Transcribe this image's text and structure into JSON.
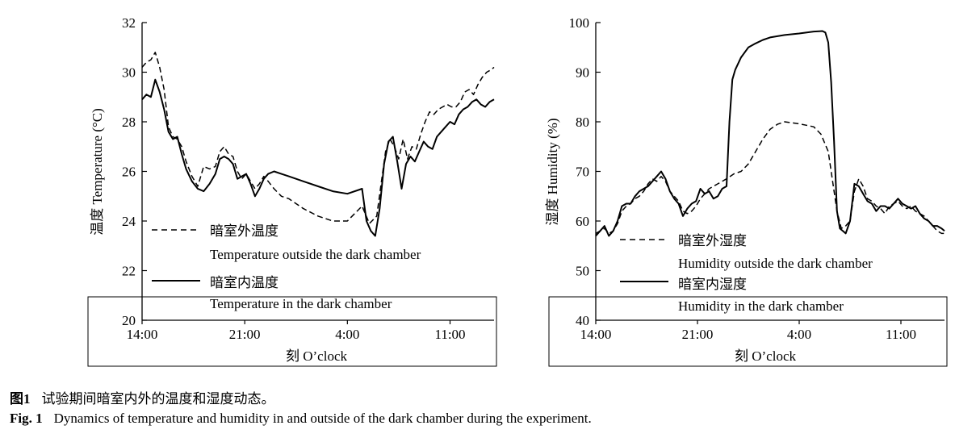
{
  "chart_data": [
    {
      "type": "line",
      "ylabel": "温度 Temperature (°C)",
      "xlabel": "刻 O’clock",
      "ylim": [
        20,
        32
      ],
      "yticks": [
        20,
        22,
        24,
        26,
        28,
        30,
        32
      ],
      "xlim": [
        0,
        24
      ],
      "xticks": [
        {
          "x": 0,
          "label": "14:00"
        },
        {
          "x": 7,
          "label": "21:00"
        },
        {
          "x": 14,
          "label": "4:00"
        },
        {
          "x": 21,
          "label": "11:00"
        }
      ],
      "series": [
        {
          "name": "暗室外温度",
          "name_en": "Temperature outside the dark chamber",
          "style": "dashed",
          "x": [
            0,
            0.3,
            0.6,
            0.9,
            1.2,
            1.5,
            1.8,
            2.1,
            2.4,
            2.7,
            3.0,
            3.4,
            3.8,
            4.2,
            4.6,
            5.0,
            5.3,
            5.6,
            5.9,
            6.2,
            6.5,
            6.8,
            7.1,
            7.4,
            7.7,
            8.0,
            8.3,
            8.6,
            9.0,
            9.5,
            10.0,
            11.0,
            12.0,
            13.0,
            14.0,
            15.0,
            15.5,
            16.0,
            16.3,
            16.6,
            16.9,
            17.2,
            17.5,
            17.8,
            18.1,
            18.4,
            18.7,
            19.0,
            19.3,
            19.6,
            19.9,
            20.2,
            20.5,
            20.8,
            21.1,
            21.4,
            21.7,
            22.0,
            22.3,
            22.6,
            22.9,
            23.2,
            23.5,
            23.8,
            24.0
          ],
          "values": [
            30.2,
            30.4,
            30.5,
            30.8,
            30.2,
            29.3,
            27.8,
            27.4,
            27.3,
            27.0,
            26.4,
            25.8,
            25.4,
            26.2,
            26.1,
            26.2,
            26.8,
            27.0,
            26.7,
            26.6,
            26.0,
            25.7,
            25.9,
            25.6,
            25.3,
            25.5,
            25.8,
            25.6,
            25.3,
            25.0,
            24.9,
            24.5,
            24.2,
            24.0,
            24.0,
            24.6,
            23.9,
            24.2,
            25.5,
            26.8,
            27.3,
            27.0,
            26.5,
            27.3,
            26.5,
            27.0,
            26.9,
            27.5,
            28.0,
            28.4,
            28.3,
            28.5,
            28.6,
            28.7,
            28.6,
            28.6,
            28.8,
            29.2,
            29.3,
            29.1,
            29.5,
            29.8,
            30.0,
            30.1,
            30.2
          ]
        },
        {
          "name": "暗室内温度",
          "name_en": "Temperature in the dark chamber",
          "style": "solid",
          "x": [
            0,
            0.3,
            0.6,
            0.9,
            1.2,
            1.5,
            1.8,
            2.1,
            2.4,
            2.7,
            3.0,
            3.4,
            3.8,
            4.2,
            4.6,
            5.0,
            5.3,
            5.6,
            5.9,
            6.2,
            6.5,
            6.8,
            7.1,
            7.4,
            7.7,
            8.0,
            8.3,
            8.6,
            9.0,
            9.5,
            10.0,
            11.0,
            12.0,
            13.0,
            14.0,
            15.0,
            15.3,
            15.6,
            15.9,
            16.2,
            16.5,
            16.8,
            17.1,
            17.4,
            17.7,
            18.0,
            18.3,
            18.6,
            18.9,
            19.2,
            19.5,
            19.8,
            20.1,
            20.4,
            20.7,
            21.0,
            21.3,
            21.6,
            21.9,
            22.2,
            22.5,
            22.8,
            23.1,
            23.4,
            23.7,
            24.0
          ],
          "values": [
            28.9,
            29.1,
            29.0,
            29.7,
            29.2,
            28.5,
            27.6,
            27.3,
            27.4,
            26.7,
            26.1,
            25.6,
            25.3,
            25.2,
            25.5,
            25.9,
            26.5,
            26.6,
            26.5,
            26.3,
            25.7,
            25.8,
            25.9,
            25.5,
            25.0,
            25.3,
            25.7,
            25.9,
            26.0,
            25.9,
            25.8,
            25.6,
            25.4,
            25.2,
            25.1,
            25.3,
            24.0,
            23.6,
            23.4,
            24.5,
            26.3,
            27.2,
            27.4,
            26.4,
            25.3,
            26.3,
            26.6,
            26.4,
            26.8,
            27.2,
            27.0,
            26.9,
            27.4,
            27.6,
            27.8,
            28.0,
            27.9,
            28.3,
            28.5,
            28.6,
            28.8,
            28.9,
            28.7,
            28.6,
            28.8,
            28.9
          ]
        }
      ]
    },
    {
      "type": "line",
      "ylabel": "湿度 Humidity (%)",
      "xlabel": "刻 O’clock",
      "ylim": [
        40,
        100
      ],
      "yticks": [
        40,
        50,
        60,
        70,
        80,
        90,
        100
      ],
      "xlim": [
        0,
        24
      ],
      "xticks": [
        {
          "x": 0,
          "label": "14:00"
        },
        {
          "x": 7,
          "label": "21:00"
        },
        {
          "x": 14,
          "label": "4:00"
        },
        {
          "x": 21,
          "label": "11:00"
        }
      ],
      "series": [
        {
          "name": "暗室外湿度",
          "name_en": "Humidity outside the dark chamber",
          "style": "dashed",
          "x": [
            0,
            0.3,
            0.6,
            0.9,
            1.2,
            1.5,
            1.8,
            2.1,
            2.4,
            2.7,
            3.0,
            3.3,
            3.6,
            3.9,
            4.2,
            4.5,
            4.8,
            5.1,
            5.4,
            5.7,
            6.0,
            6.3,
            6.6,
            6.9,
            7.2,
            7.5,
            7.8,
            8.1,
            8.4,
            8.7,
            9.0,
            9.5,
            10.0,
            10.5,
            11.0,
            11.5,
            12.0,
            12.5,
            13.0,
            13.5,
            14.0,
            14.5,
            15.0,
            15.5,
            16.0,
            16.2,
            16.4,
            16.6,
            16.9,
            17.2,
            17.5,
            17.8,
            18.1,
            18.4,
            18.7,
            19.0,
            19.3,
            19.6,
            19.9,
            20.2,
            20.5,
            20.8,
            21.1,
            21.4,
            21.7,
            22.0,
            22.3,
            22.6,
            22.9,
            23.2,
            23.5,
            23.8,
            24.0
          ],
          "values": [
            57.5,
            58.0,
            58.5,
            57.5,
            58.0,
            59.5,
            62.0,
            63.0,
            63.5,
            64.5,
            65.0,
            66.0,
            67.5,
            68.5,
            68.0,
            69.0,
            68.0,
            66.0,
            65.0,
            64.0,
            62.0,
            61.5,
            62.0,
            63.0,
            64.5,
            65.5,
            66.5,
            67.0,
            67.5,
            68.0,
            68.5,
            69.5,
            70.0,
            71.5,
            74.0,
            76.5,
            78.5,
            79.5,
            80.0,
            79.8,
            79.6,
            79.3,
            79.0,
            77.5,
            74.0,
            70.0,
            66.0,
            62.0,
            58.5,
            59.0,
            60.0,
            66.0,
            68.5,
            67.0,
            64.5,
            64.0,
            63.0,
            62.5,
            61.5,
            63.0,
            63.5,
            64.0,
            63.0,
            62.5,
            63.0,
            62.0,
            61.5,
            61.0,
            60.0,
            59.0,
            58.0,
            57.5,
            57.5
          ]
        },
        {
          "name": "暗室内湿度",
          "name_en": "Humidity in the dark chamber",
          "style": "solid",
          "x": [
            0,
            0.3,
            0.6,
            0.9,
            1.2,
            1.5,
            1.8,
            2.1,
            2.4,
            2.7,
            3.0,
            3.3,
            3.6,
            3.9,
            4.2,
            4.5,
            4.8,
            5.1,
            5.4,
            5.7,
            6.0,
            6.3,
            6.6,
            6.9,
            7.2,
            7.5,
            7.8,
            8.1,
            8.4,
            8.7,
            9.0,
            9.2,
            9.4,
            9.6,
            10.0,
            10.5,
            11.0,
            11.5,
            12.0,
            13.0,
            14.0,
            15.0,
            15.6,
            15.8,
            16.0,
            16.2,
            16.4,
            16.6,
            16.8,
            17.0,
            17.2,
            17.5,
            17.8,
            18.1,
            18.4,
            18.7,
            19.0,
            19.3,
            19.6,
            19.9,
            20.2,
            20.5,
            20.8,
            21.1,
            21.4,
            21.7,
            22.0,
            22.3,
            22.6,
            22.9,
            23.2,
            23.5,
            23.8,
            24.0
          ],
          "values": [
            57.0,
            58.0,
            59.0,
            57.0,
            58.0,
            60.0,
            63.0,
            63.5,
            63.5,
            65.0,
            66.0,
            66.5,
            67.0,
            68.0,
            69.0,
            70.0,
            68.5,
            66.0,
            64.5,
            63.5,
            61.0,
            62.5,
            63.5,
            64.0,
            66.5,
            65.5,
            66.0,
            64.5,
            65.0,
            66.5,
            67.0,
            80.0,
            88.5,
            90.5,
            93.0,
            95.0,
            95.8,
            96.5,
            97.0,
            97.5,
            97.8,
            98.2,
            98.3,
            98.0,
            96.0,
            88.0,
            76.0,
            62.0,
            58.5,
            58.0,
            57.5,
            60.0,
            67.5,
            67.0,
            65.5,
            64.0,
            63.5,
            62.0,
            63.0,
            63.0,
            62.5,
            63.5,
            64.5,
            63.5,
            63.0,
            62.5,
            63.0,
            61.5,
            60.5,
            60.0,
            59.0,
            59.0,
            58.5,
            58.0
          ]
        }
      ]
    }
  ],
  "captions": {
    "zh_label": "图1",
    "zh_text": "试验期间暗室内外的温度和湿度动态。",
    "en_label": "Fig. 1",
    "en_text": "Dynamics of temperature and humidity in and outside of the dark chamber during the experiment."
  }
}
